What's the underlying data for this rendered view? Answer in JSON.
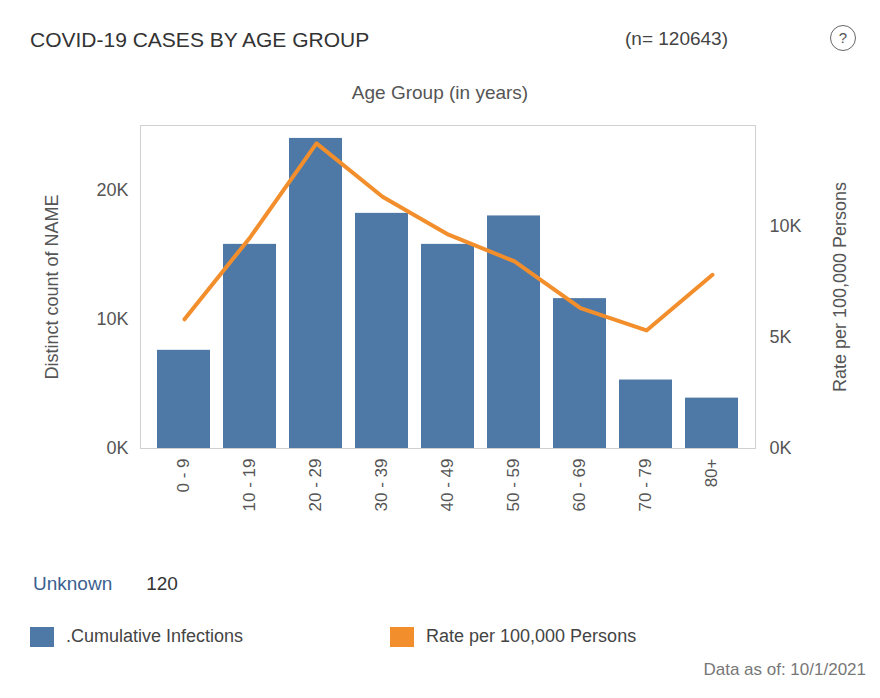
{
  "chart_data": {
    "type": "bar",
    "title": "COVID-19 CASES BY AGE GROUP",
    "subtitle": "(n= 120643)",
    "icon": "?",
    "x_label": "Age Group (in years)",
    "y_label": "Distinct count of NAME",
    "y2_label": "Rate per 100,000 Persons",
    "categories": [
      "0 - 9",
      "10 - 19",
      "20 - 29",
      "30 - 39",
      "40 - 49",
      "50 - 59",
      "60 - 69",
      "70 - 79",
      "80+"
    ],
    "series": [
      {
        "name": ".Cumulative Infections",
        "type": "bar",
        "color": "#4e79a7",
        "values": [
          7600,
          15800,
          24000,
          18200,
          15800,
          18000,
          11600,
          5300,
          3900
        ]
      },
      {
        "name": "Rate per 100,000 Persons",
        "type": "line",
        "axis": "y2",
        "color": "#f28e2b",
        "values": [
          5800,
          9500,
          13700,
          11300,
          9600,
          8400,
          6300,
          5300,
          7800
        ]
      }
    ],
    "ylim": [
      0,
      25000
    ],
    "yticks": [
      {
        "value": 0,
        "label": "0K"
      },
      {
        "value": 10000,
        "label": "10K"
      },
      {
        "value": 20000,
        "label": "20K"
      }
    ],
    "y2lim": [
      0,
      14500
    ],
    "y2ticks": [
      {
        "value": 0,
        "label": "0K"
      },
      {
        "value": 5000,
        "label": "5K"
      },
      {
        "value": 10000,
        "label": "10K"
      }
    ],
    "unknown": {
      "label": "Unknown",
      "value": 120
    },
    "caption": "Data as of: 10/1/2021",
    "legend": "bottom"
  }
}
